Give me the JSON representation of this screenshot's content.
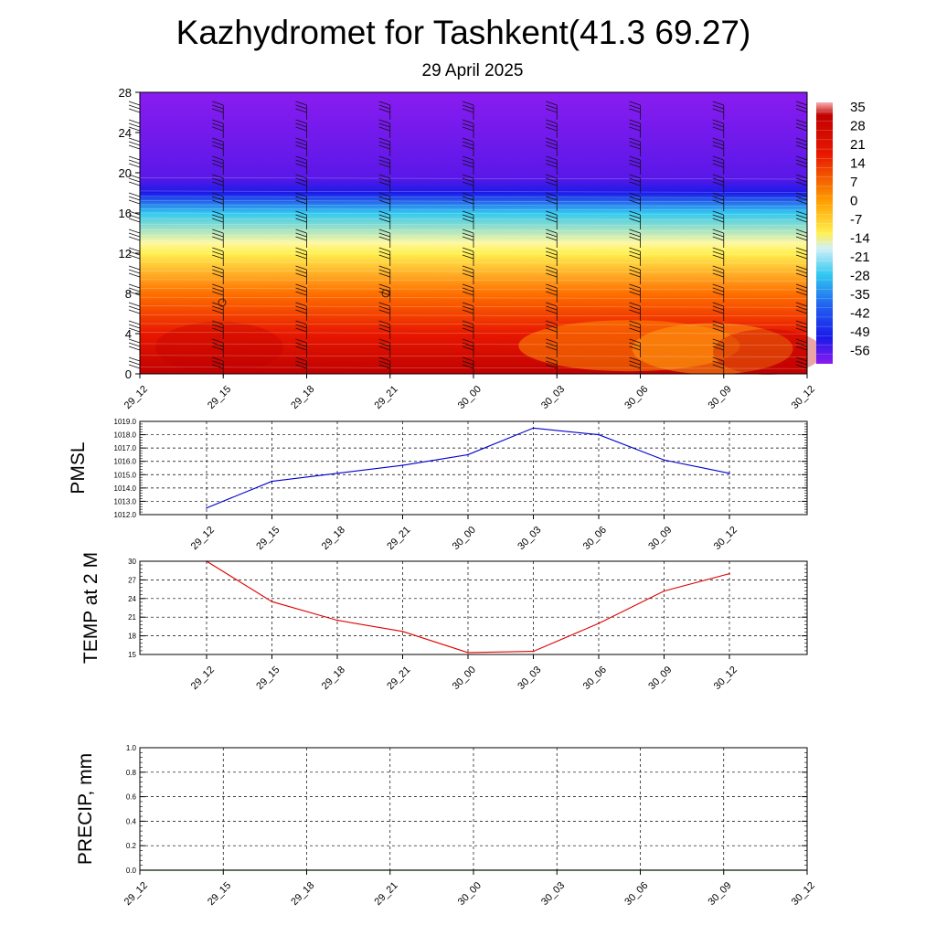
{
  "title": "Kazhydromet for Tashkent(41.3 69.27)",
  "subtitle": "29 April 2025",
  "chart_data": [
    {
      "type": "heatmap",
      "name": "vertical-temperature-section",
      "x_ticks": [
        "29_12",
        "29_15",
        "29_18",
        "29_21",
        "30_00",
        "30_03",
        "30_06",
        "30_09",
        "30_12"
      ],
      "y_ticks": [
        "0",
        "4",
        "8",
        "12",
        "16",
        "20",
        "24",
        "28"
      ],
      "ylim": [
        0,
        28
      ],
      "colorbar_labels": [
        "35",
        "28",
        "21",
        "14",
        "7",
        "0",
        "-7",
        "-14",
        "-21",
        "-28",
        "-35",
        "-42",
        "-49",
        "-56"
      ],
      "colors": {
        "top": "#8a1cf0",
        "cold": "#1a1ae8",
        "cyan": "#30c8f0",
        "yellow": "#fff050",
        "orange": "#ff8a00",
        "red": "#e81800",
        "dark_red": "#c00000"
      },
      "levels": [
        {
          "height": 0,
          "temp": 30
        },
        {
          "height": 4,
          "temp": 18
        },
        {
          "height": 8,
          "temp": 2
        },
        {
          "height": 12,
          "temp": -14
        },
        {
          "height": 13,
          "temp": -16
        },
        {
          "height": 16,
          "temp": -35
        },
        {
          "height": 18,
          "temp": -52
        },
        {
          "height": 19.5,
          "temp": -56
        },
        {
          "height": 28,
          "temp": -60
        }
      ],
      "grid": false
    },
    {
      "type": "line",
      "name": "pmsl",
      "ylabel": "PMSL",
      "categories": [
        "29_12",
        "29_15",
        "29_18",
        "29_21",
        "30_00",
        "30_03",
        "30_06",
        "30_09",
        "30_12"
      ],
      "y_ticks": [
        "1012.0",
        "1013.0",
        "1014.0",
        "1015.0",
        "1016.0",
        "1017.0",
        "1018.0",
        "1019.0"
      ],
      "values": [
        1012.5,
        1014.5,
        1015.1,
        1015.7,
        1016.5,
        1018.5,
        1018.0,
        1016.1,
        1015.1
      ],
      "ylim": [
        1012,
        1019
      ],
      "color": "#0000d0",
      "grid": true
    },
    {
      "type": "line",
      "name": "temp-2m",
      "ylabel": "TEMP at 2 M",
      "categories": [
        "29_12",
        "29_15",
        "29_18",
        "29_21",
        "30_00",
        "30_03",
        "30_06",
        "30_09",
        "30_12"
      ],
      "y_ticks": [
        "15",
        "18",
        "21",
        "24",
        "27",
        "30"
      ],
      "values": [
        30,
        23.5,
        20.5,
        18.7,
        15.3,
        15.5,
        20,
        25.2,
        28
      ],
      "ylim": [
        15,
        30
      ],
      "color": "#e00000",
      "grid": true
    },
    {
      "type": "line",
      "name": "precip",
      "ylabel": "PRECIP, mm",
      "categories": [
        "29_12",
        "29_15",
        "29_18",
        "29_21",
        "30_00",
        "30_03",
        "30_06",
        "30_09",
        "30_12"
      ],
      "y_ticks": [
        "0.0",
        "0.2",
        "0.4",
        "0.6",
        "0.8",
        "1.0"
      ],
      "values": [
        0,
        0,
        0,
        0,
        0,
        0,
        0,
        0,
        0
      ],
      "ylim": [
        0,
        1
      ],
      "color": "#008000",
      "grid": true
    }
  ]
}
